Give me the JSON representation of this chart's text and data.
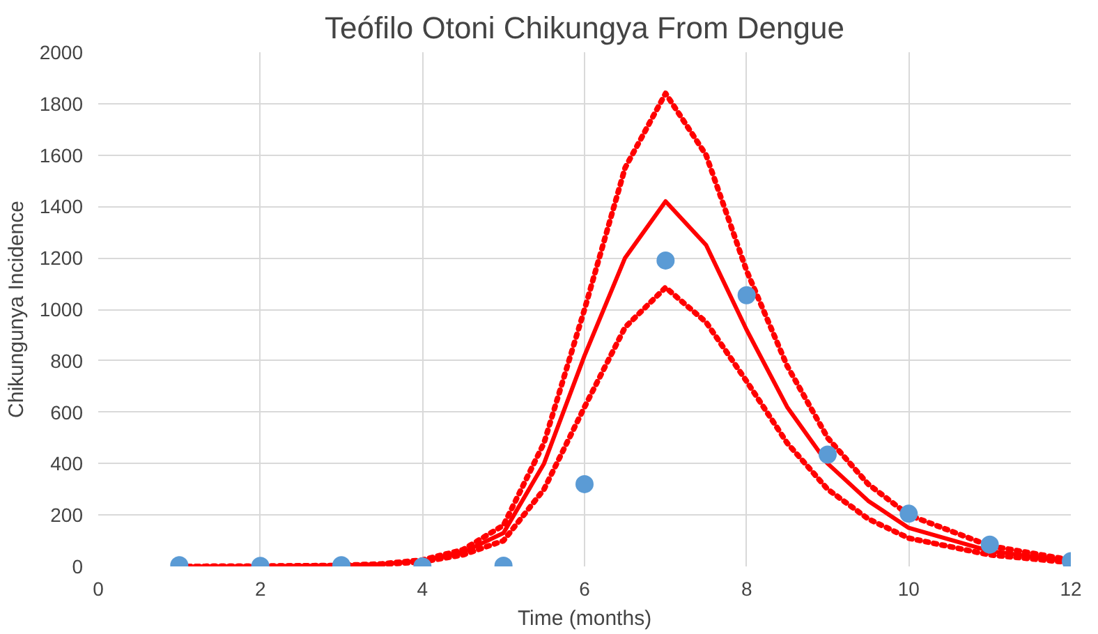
{
  "chart_data": {
    "type": "line",
    "title": "Teófilo Otoni Chikungya From Dengue",
    "xlabel": "Time (months)",
    "ylabel": "Chikungunya Incidence",
    "xlim": [
      0,
      12
    ],
    "xticks": [
      0,
      2,
      4,
      6,
      8,
      10,
      12
    ],
    "ylim": [
      0,
      2000
    ],
    "yticks": [
      0,
      200,
      400,
      600,
      800,
      1000,
      1200,
      1400,
      1600,
      1800,
      2000
    ],
    "grid": true,
    "series": [
      {
        "line_style": "dotted",
        "color": "#ff0000",
        "x": [
          1,
          2,
          3,
          3.5,
          4,
          4.5,
          5,
          5.5,
          6,
          6.5,
          7,
          7.5,
          8,
          8.5,
          9,
          9.5,
          10,
          11,
          12
        ],
        "values": [
          0,
          1,
          4,
          10,
          25,
          65,
          160,
          480,
          1000,
          1550,
          1840,
          1600,
          1150,
          780,
          500,
          320,
          200,
          80,
          25
        ]
      },
      {
        "line_style": "solid",
        "color": "#ff0000",
        "x": [
          1,
          2,
          3,
          3.5,
          4,
          4.5,
          5,
          5.5,
          6,
          6.5,
          7,
          7.5,
          8,
          8.5,
          9,
          9.5,
          10,
          11,
          12
        ],
        "values": [
          0,
          1,
          4,
          9,
          22,
          55,
          130,
          400,
          820,
          1200,
          1420,
          1250,
          920,
          620,
          400,
          255,
          150,
          60,
          20
        ]
      },
      {
        "line_style": "dotted",
        "color": "#ff0000",
        "x": [
          1,
          2,
          3,
          3.5,
          4,
          4.5,
          5,
          5.5,
          6,
          6.5,
          7,
          7.5,
          8,
          8.5,
          9,
          9.5,
          10,
          11,
          12
        ],
        "values": [
          0,
          1,
          3,
          8,
          18,
          45,
          100,
          300,
          620,
          930,
          1085,
          950,
          720,
          480,
          300,
          185,
          110,
          45,
          15
        ]
      },
      {
        "type": "scatter",
        "marker": "circle",
        "color": "#5b9bd5",
        "x": [
          1,
          2,
          3,
          4,
          5,
          6,
          7,
          8,
          9,
          10,
          11,
          12
        ],
        "values": [
          5,
          2,
          5,
          0,
          3,
          320,
          1190,
          1055,
          435,
          205,
          85,
          20
        ]
      }
    ]
  }
}
